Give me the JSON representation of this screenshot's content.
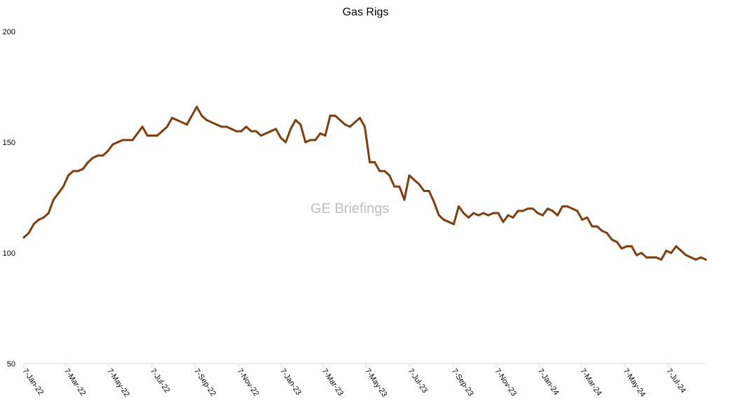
{
  "chart_data": {
    "type": "line",
    "title": "Gas Rigs",
    "xlabel": "",
    "ylabel": "",
    "ylim": [
      50,
      200
    ],
    "yticks": [
      50,
      100,
      150,
      200
    ],
    "x_tick_labels": [
      "7-Jan-22",
      "7-Mar-22",
      "7-May-22",
      "7-Jul-22",
      "7-Sep-22",
      "7-Nov-22",
      "7-Jan-23",
      "7-Mar-23",
      "7-May-23",
      "7-Jul-23",
      "7-Sep-23",
      "7-Nov-23",
      "7-Jan-24",
      "7-Mar-24",
      "7-May-24",
      "7-Jul-24"
    ],
    "grid": false,
    "legend": "none",
    "series": [
      {
        "color": "#843c0c",
        "x": [
          "2022-01-07",
          "2022-01-14",
          "2022-01-21",
          "2022-01-28",
          "2022-02-04",
          "2022-02-11",
          "2022-02-18",
          "2022-02-25",
          "2022-03-04",
          "2022-03-11",
          "2022-03-18",
          "2022-03-25",
          "2022-04-01",
          "2022-04-08",
          "2022-04-15",
          "2022-04-22",
          "2022-04-29",
          "2022-05-06",
          "2022-05-13",
          "2022-05-20",
          "2022-05-27",
          "2022-06-03",
          "2022-06-10",
          "2022-06-17",
          "2022-06-24",
          "2022-07-01",
          "2022-07-08",
          "2022-07-15",
          "2022-07-22",
          "2022-07-29",
          "2022-08-05",
          "2022-08-12",
          "2022-08-19",
          "2022-08-26",
          "2022-09-02",
          "2022-09-09",
          "2022-09-16",
          "2022-09-23",
          "2022-09-30",
          "2022-10-07",
          "2022-10-14",
          "2022-10-21",
          "2022-10-28",
          "2022-11-04",
          "2022-11-11",
          "2022-11-18",
          "2022-11-25",
          "2022-12-02",
          "2022-12-09",
          "2022-12-16",
          "2022-12-23",
          "2022-12-30",
          "2023-01-06",
          "2023-01-13",
          "2023-01-20",
          "2023-01-27",
          "2023-02-03",
          "2023-02-10",
          "2023-02-17",
          "2023-02-24",
          "2023-03-03",
          "2023-03-10",
          "2023-03-17",
          "2023-03-24",
          "2023-03-31",
          "2023-04-07",
          "2023-04-14",
          "2023-04-21",
          "2023-04-28",
          "2023-05-05",
          "2023-05-12",
          "2023-05-19",
          "2023-05-26",
          "2023-06-02",
          "2023-06-09",
          "2023-06-16",
          "2023-06-23",
          "2023-06-30",
          "2023-07-07",
          "2023-07-14",
          "2023-07-21",
          "2023-07-28",
          "2023-08-04",
          "2023-08-11",
          "2023-08-18",
          "2023-08-25",
          "2023-09-01",
          "2023-09-08",
          "2023-09-15",
          "2023-09-22",
          "2023-09-29",
          "2023-10-06",
          "2023-10-13",
          "2023-10-20",
          "2023-10-27",
          "2023-11-03",
          "2023-11-10",
          "2023-11-17",
          "2023-11-24",
          "2023-12-01",
          "2023-12-08",
          "2023-12-15",
          "2023-12-22",
          "2023-12-29",
          "2024-01-05",
          "2024-01-12",
          "2024-01-19",
          "2024-01-26",
          "2024-02-02",
          "2024-02-09",
          "2024-02-16",
          "2024-02-23",
          "2024-03-01",
          "2024-03-08",
          "2024-03-15",
          "2024-03-22",
          "2024-03-29",
          "2024-04-05",
          "2024-04-12",
          "2024-04-19",
          "2024-04-26",
          "2024-05-03",
          "2024-05-10",
          "2024-05-17",
          "2024-05-24",
          "2024-05-31",
          "2024-06-07",
          "2024-06-14",
          "2024-06-21",
          "2024-06-28",
          "2024-07-05",
          "2024-07-12",
          "2024-07-19",
          "2024-07-26",
          "2024-08-02",
          "2024-08-09",
          "2024-08-16",
          "2024-08-23",
          "2024-08-30"
        ],
        "values": [
          107,
          109,
          113,
          115,
          116,
          118,
          124,
          127,
          130,
          135,
          137,
          137,
          138,
          141,
          143,
          144,
          144,
          146,
          149,
          150,
          151,
          151,
          151,
          154,
          157,
          153,
          153,
          153,
          155,
          157,
          161,
          160,
          159,
          158,
          162,
          166,
          162,
          160,
          159,
          158,
          157,
          157,
          156,
          155,
          155,
          157,
          155,
          155,
          153,
          154,
          155,
          156,
          152,
          150,
          156,
          160,
          158,
          150,
          151,
          151,
          154,
          153,
          162,
          162,
          160,
          158,
          157,
          159,
          161,
          157,
          141,
          141,
          137,
          137,
          135,
          130,
          130,
          124,
          135,
          133,
          131,
          128,
          128,
          123,
          117,
          115,
          114,
          113,
          121,
          118,
          116,
          118,
          117,
          118,
          117,
          118,
          118,
          114,
          117,
          116,
          119,
          119,
          120,
          120,
          118,
          117,
          120,
          119,
          117,
          121,
          121,
          120,
          119,
          115,
          116,
          112,
          112,
          110,
          109,
          106,
          105,
          102,
          103,
          103,
          99,
          100,
          98,
          98,
          98,
          97,
          101,
          100,
          103,
          101,
          99,
          98,
          97,
          98,
          97
        ]
      }
    ],
    "watermark": "GE Briefings"
  }
}
